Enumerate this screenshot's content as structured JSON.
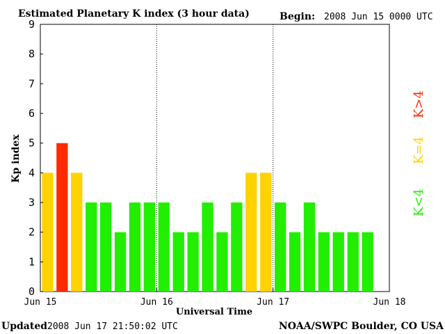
{
  "header": {
    "title": "Estimated Planetary K index (3 hour data)",
    "begin_label": "Begin:",
    "begin_value": "2008 Jun 15 0000 UTC"
  },
  "footer": {
    "updated_label": "Updated",
    "updated_value": "2008 Jun 17 21:50:02 UTC",
    "source": "NOAA/SWPC Boulder, CO USA"
  },
  "legend": {
    "less": "K<4",
    "equal": "K=4",
    "greater": "K>4"
  },
  "colors": {
    "less": "#22ee00",
    "equal": "#ffd200",
    "greater": "#ff2a00",
    "axis": "#000000",
    "gridline": "#000000"
  },
  "chart_data": {
    "type": "bar",
    "title": "Estimated Planetary K index (3 hour data)",
    "xlabel": "Universal Time",
    "ylabel": "Kp index",
    "ylim": [
      0,
      9
    ],
    "yticks": [
      "0",
      "1",
      "2",
      "3",
      "4",
      "5",
      "6",
      "7",
      "8",
      "9"
    ],
    "xticks": [
      "Jun 15",
      "Jun 16",
      "Jun 17",
      "Jun 18"
    ],
    "day_separators": [
      "Jun 16",
      "Jun 17"
    ],
    "values": [
      4,
      5,
      4,
      3,
      3,
      2,
      3,
      3,
      3,
      2,
      2,
      3,
      2,
      3,
      4,
      4,
      3,
      2,
      3,
      2,
      2,
      2,
      2
    ]
  }
}
